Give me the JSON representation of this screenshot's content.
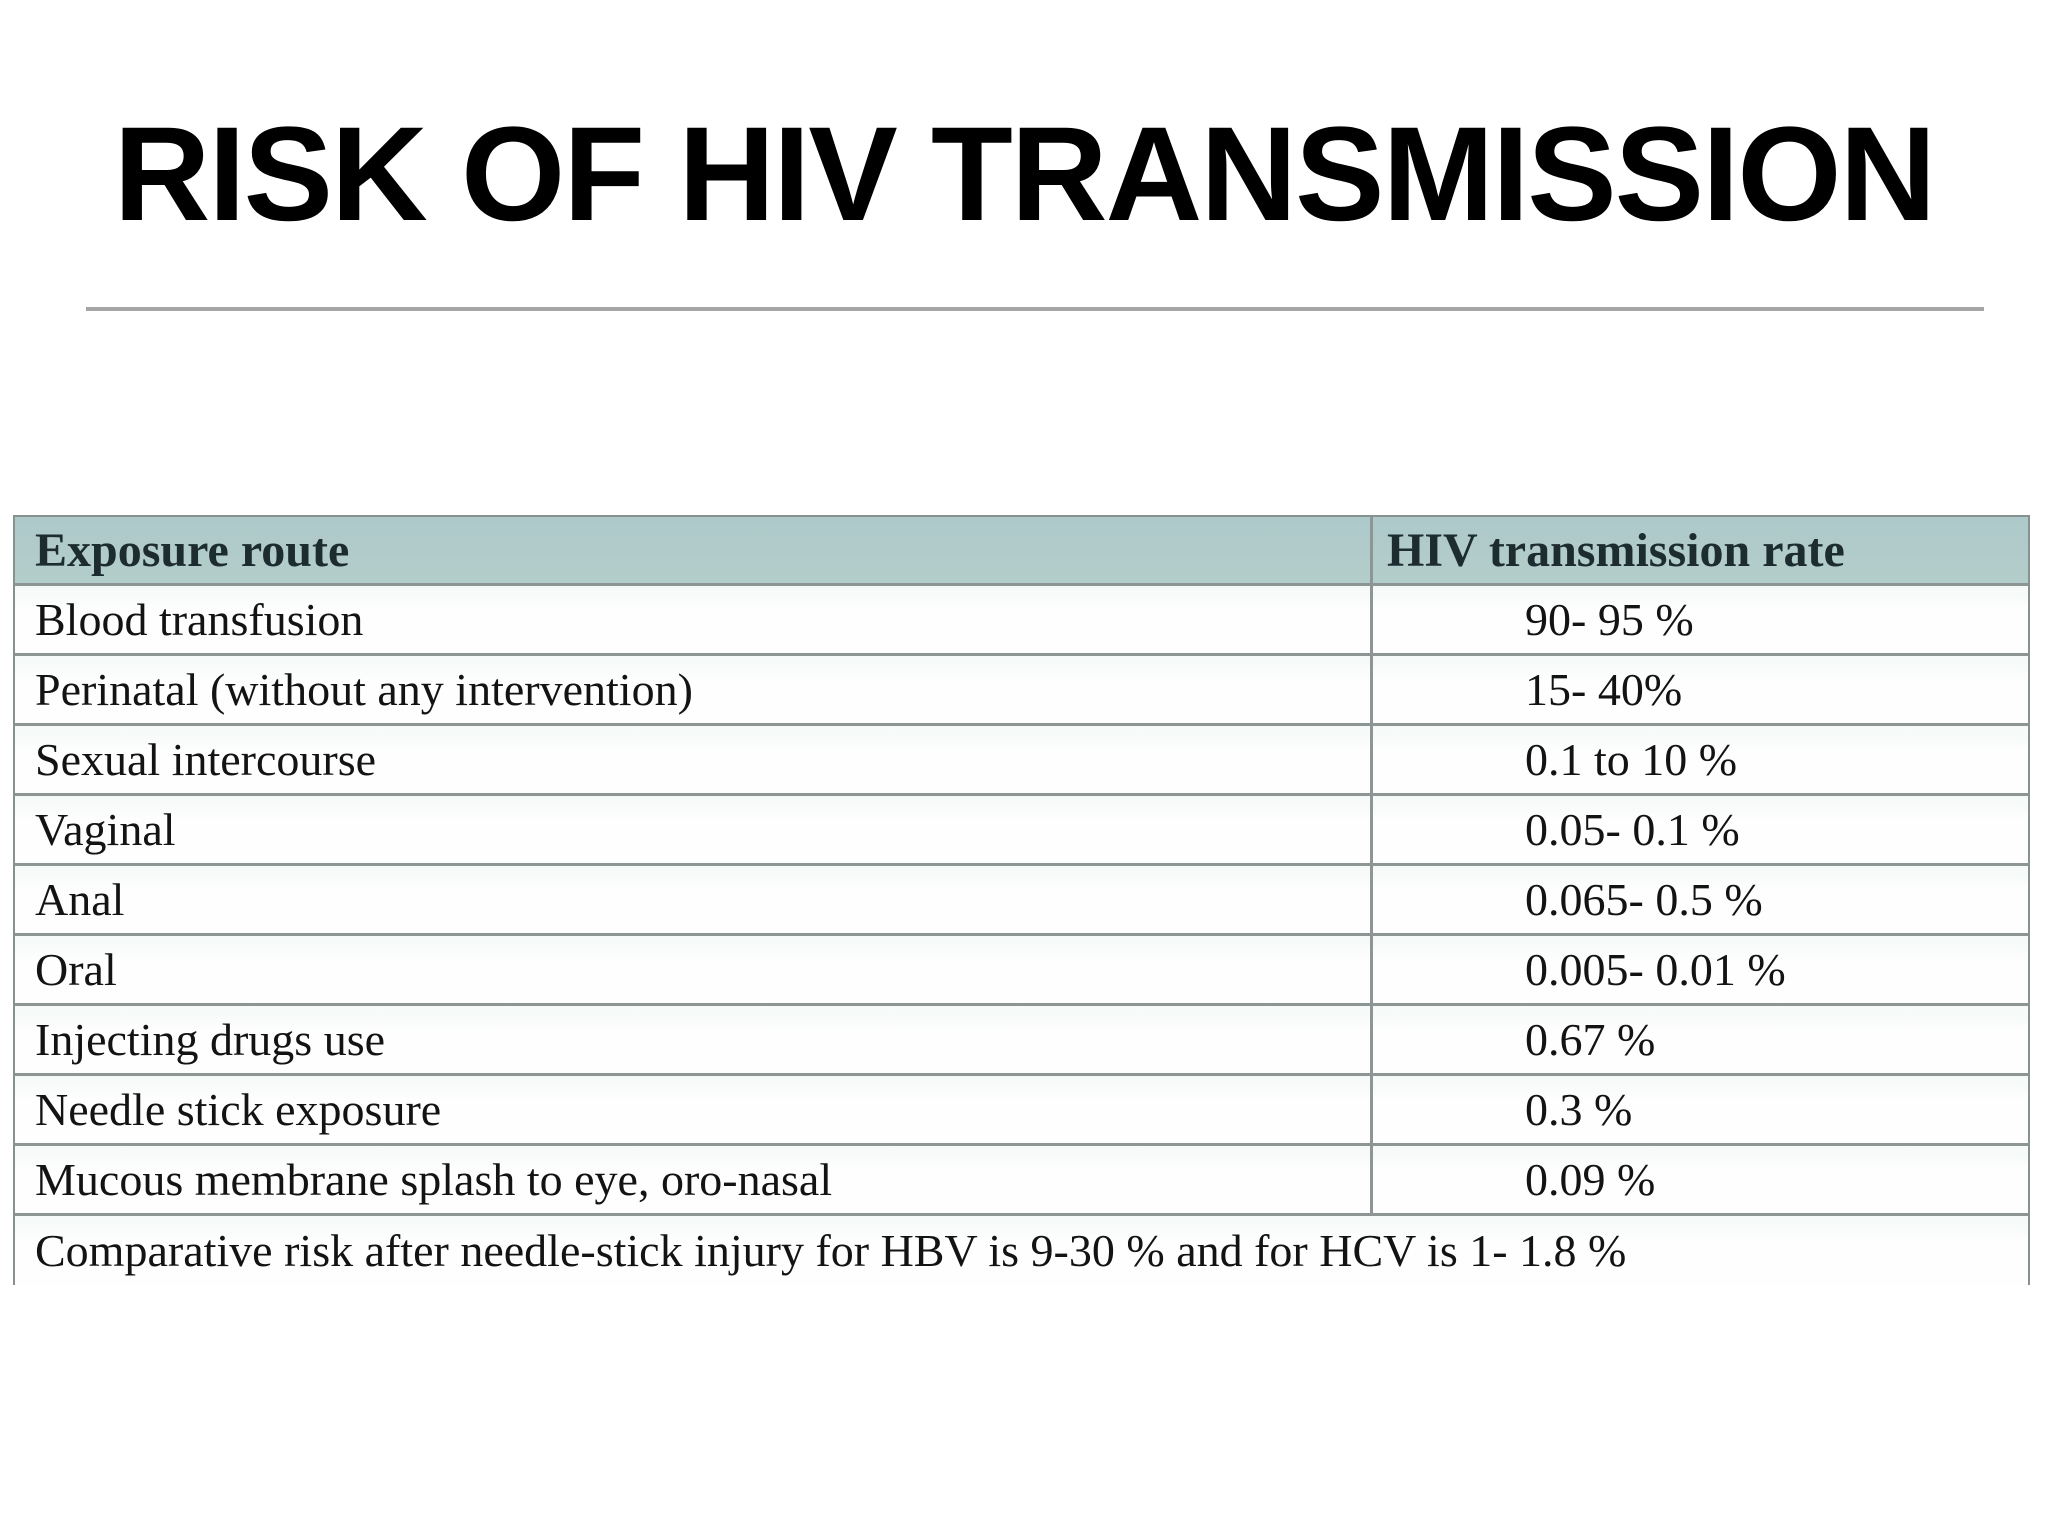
{
  "slide": {
    "title": "RISK OF HIV TRANSMISSION"
  },
  "table": {
    "headers": [
      "Exposure route",
      "HIV transmission rate"
    ],
    "rows": [
      {
        "route": "Blood transfusion",
        "rate": "90- 95 %"
      },
      {
        "route": "Perinatal (without any intervention)",
        "rate": "15- 40%"
      },
      {
        "route": "Sexual intercourse",
        "rate": "0.1 to 10 %"
      },
      {
        "route": "Vaginal",
        "rate": "0.05- 0.1 %"
      },
      {
        "route": "Anal",
        "rate": "0.065- 0.5 %"
      },
      {
        "route": "Oral",
        "rate": "0.005- 0.01 %"
      },
      {
        "route": "Injecting drugs use",
        "rate": "0.67 %"
      },
      {
        "route": "Needle stick exposure",
        "rate": "0.3 %"
      },
      {
        "route": "Mucous membrane splash to eye, oro-nasal",
        "rate": "0.09 %"
      }
    ],
    "footer_note": "Comparative risk after needle-stick injury for HBV is 9-30 % and for HCV is 1- 1.8 %"
  },
  "colors": {
    "header_background": "#b0cbca",
    "header_text": "#1c2c30",
    "table_border": "#8d9695",
    "title_text": "#000000",
    "title_rule": "#a5a5a5",
    "row_background": "#fdfdfd"
  }
}
